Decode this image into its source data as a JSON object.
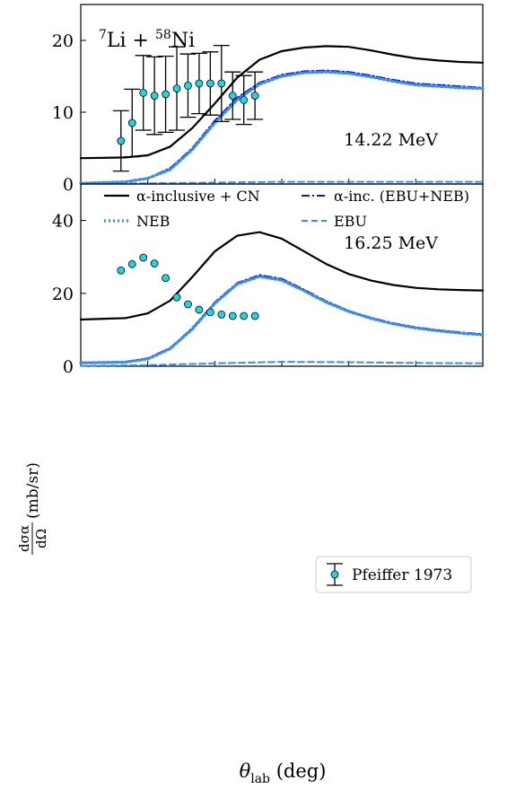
{
  "figure": {
    "reaction": {
      "pre1": "7",
      "el1": "Li + ",
      "pre2": "58",
      "el2": "Ni"
    },
    "xlabel": {
      "main": "θ",
      "sub": "lab",
      "rest": " (deg)"
    },
    "ylabel": {
      "num": "dσα",
      "den": "dΩ",
      "rest": "(mb/sr)"
    },
    "legend_top": {
      "items": [
        {
          "label": "α-inclusive + CN",
          "color": "#000000",
          "style": "solid"
        },
        {
          "label": "α-inc. (EBU+NEB)",
          "color": "#1515c8",
          "style": "dashdot"
        },
        {
          "label": "NEB",
          "color": "#3a8eea",
          "style": "dotted"
        },
        {
          "label": "EBU",
          "color": "#3a8eea",
          "style": "dashed"
        }
      ]
    },
    "legend_bottom": {
      "label": "Pfeiffer 1973",
      "marker_color": "#22d3e0"
    }
  },
  "chart_data": [
    {
      "type": "line",
      "energy_label": "14.22 MeV",
      "xlim": [
        0,
        180
      ],
      "ylim": [
        0,
        25
      ],
      "yticks": [
        0,
        10,
        20
      ],
      "xticks": [
        0,
        30,
        60,
        90,
        120,
        150,
        180
      ],
      "series": [
        {
          "name": "α-inclusive + CN",
          "x": [
            0,
            20,
            30,
            40,
            50,
            60,
            70,
            80,
            90,
            100,
            110,
            120,
            130,
            140,
            150,
            160,
            170,
            180
          ],
          "y": [
            3.6,
            3.7,
            4.0,
            5.2,
            7.8,
            11.2,
            14.8,
            17.3,
            18.5,
            19.0,
            19.2,
            19.1,
            18.6,
            18.0,
            17.5,
            17.2,
            17.0,
            16.9
          ]
        },
        {
          "name": "α-inc. (EBU+NEB)",
          "x": [
            0,
            20,
            30,
            40,
            50,
            60,
            70,
            80,
            90,
            100,
            110,
            120,
            130,
            140,
            150,
            160,
            170,
            180
          ],
          "y": [
            0.1,
            0.3,
            0.8,
            2.2,
            5.0,
            8.8,
            12.0,
            14.1,
            15.2,
            15.7,
            15.8,
            15.6,
            15.1,
            14.5,
            14.0,
            13.8,
            13.6,
            13.4
          ]
        },
        {
          "name": "NEB",
          "x": [
            0,
            20,
            30,
            40,
            50,
            60,
            70,
            80,
            90,
            100,
            110,
            120,
            130,
            140,
            150,
            160,
            170,
            180
          ],
          "y": [
            0.1,
            0.3,
            0.8,
            2.0,
            4.8,
            8.5,
            11.7,
            13.9,
            15.0,
            15.5,
            15.6,
            15.4,
            14.9,
            14.3,
            13.8,
            13.6,
            13.4,
            13.3
          ]
        },
        {
          "name": "EBU",
          "x": [
            0,
            30,
            60,
            90,
            120,
            150,
            180
          ],
          "y": [
            0.05,
            0.1,
            0.2,
            0.3,
            0.3,
            0.3,
            0.3
          ]
        }
      ],
      "data": {
        "x": [
          18,
          23,
          28,
          33,
          38,
          43,
          48,
          53,
          58,
          63,
          68,
          73,
          78
        ],
        "y": [
          6.0,
          8.5,
          12.7,
          12.3,
          12.5,
          13.3,
          13.7,
          14.0,
          14.0,
          14.0,
          12.3,
          11.7,
          12.3
        ],
        "err": [
          4.2,
          4.7,
          5.2,
          5.4,
          5.3,
          5.8,
          4.4,
          4.2,
          4.4,
          5.3,
          3.3,
          3.4,
          3.3
        ]
      }
    },
    {
      "type": "line",
      "energy_label": "16.25 MeV",
      "xlim": [
        0,
        180
      ],
      "ylim": [
        0,
        50
      ],
      "yticks": [
        0,
        20,
        40
      ],
      "xticks": [
        0,
        30,
        60,
        90,
        120,
        150,
        180
      ],
      "series": [
        {
          "name": "α-inclusive + CN",
          "x": [
            0,
            20,
            30,
            40,
            50,
            60,
            70,
            80,
            90,
            100,
            110,
            120,
            130,
            140,
            150,
            160,
            170,
            180
          ],
          "y": [
            12.8,
            13.2,
            14.5,
            18.0,
            24.5,
            31.5,
            35.8,
            36.8,
            35.0,
            31.5,
            28.0,
            25.3,
            23.5,
            22.3,
            21.5,
            21.1,
            20.9,
            20.8
          ]
        },
        {
          "name": "α-inc. (EBU+NEB)",
          "x": [
            0,
            20,
            30,
            40,
            50,
            60,
            70,
            80,
            90,
            100,
            110,
            120,
            130,
            140,
            150,
            160,
            170,
            180
          ],
          "y": [
            1.0,
            1.2,
            2.2,
            5.0,
            10.5,
            17.5,
            22.8,
            25.0,
            24.0,
            21.0,
            17.8,
            15.2,
            13.3,
            11.8,
            10.7,
            9.9,
            9.3,
            8.8
          ]
        },
        {
          "name": "NEB",
          "x": [
            0,
            20,
            30,
            40,
            50,
            60,
            70,
            80,
            90,
            100,
            110,
            120,
            130,
            140,
            150,
            160,
            170,
            180
          ],
          "y": [
            0.9,
            1.1,
            2.0,
            4.8,
            10.2,
            17.2,
            22.5,
            24.6,
            23.6,
            20.7,
            17.5,
            15.0,
            13.1,
            11.6,
            10.5,
            9.7,
            9.1,
            8.6
          ]
        },
        {
          "name": "EBU",
          "x": [
            0,
            30,
            60,
            90,
            120,
            150,
            180
          ],
          "y": [
            0.1,
            0.3,
            0.8,
            1.2,
            1.1,
            0.9,
            0.8
          ]
        }
      ],
      "data": {
        "x": [
          18,
          23,
          28,
          33,
          38,
          43,
          48,
          53,
          58,
          63,
          68,
          73,
          78
        ],
        "y": [
          26.3,
          28.0,
          29.8,
          28.2,
          24.2,
          18.9,
          17.0,
          15.5,
          14.8,
          14.2,
          13.8,
          13.8,
          13.8
        ]
      }
    }
  ]
}
